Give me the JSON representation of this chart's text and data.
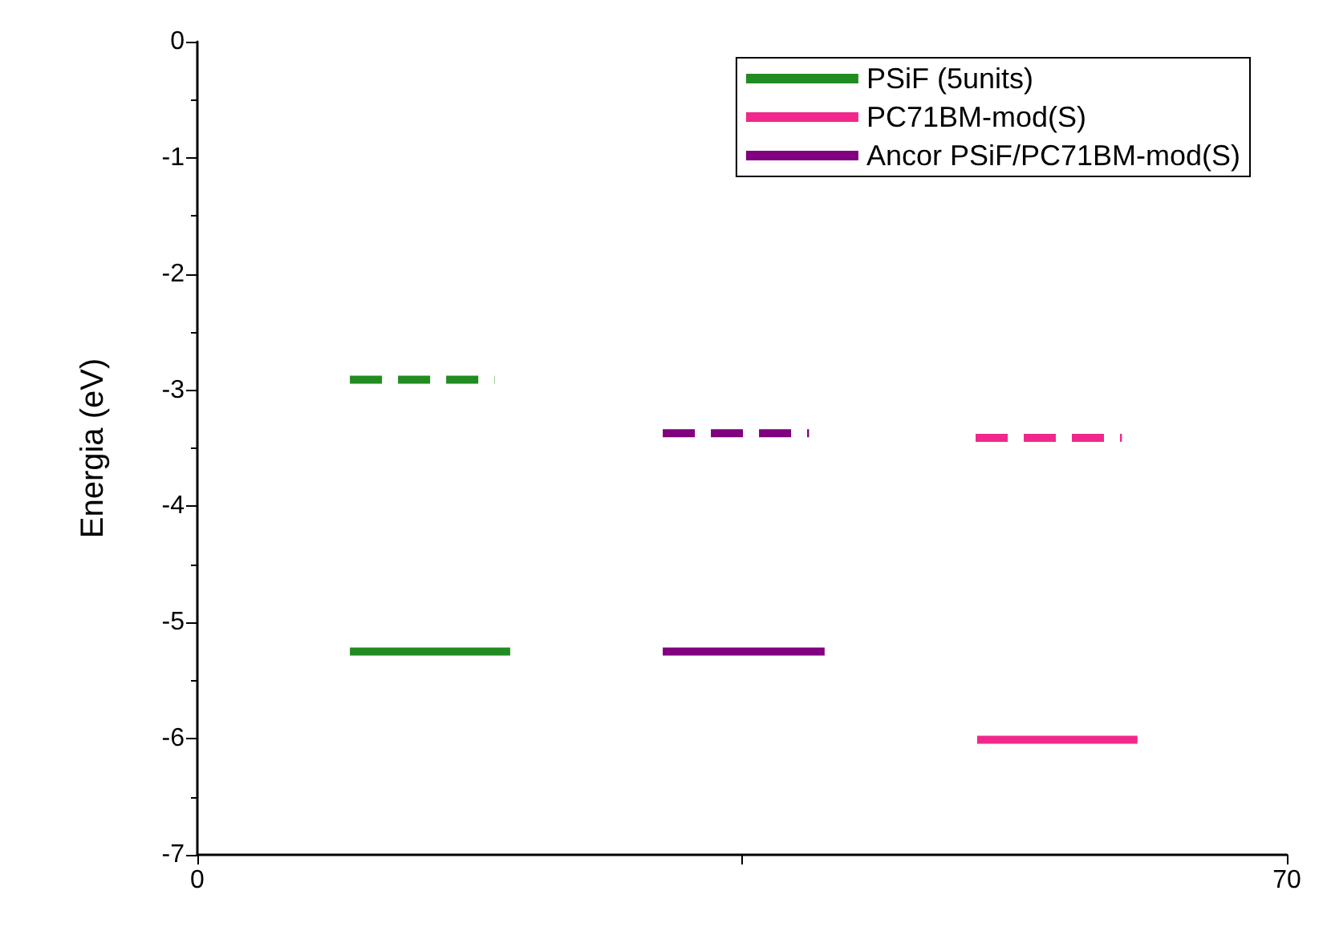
{
  "chart_data": {
    "type": "line",
    "ylabel": "Energia (eV)",
    "xlim": [
      0,
      70
    ],
    "xticks": [
      0,
      {
        "value": 35,
        "label": null
      },
      70
    ],
    "ylim": [
      -7,
      0
    ],
    "yticks": [
      -7,
      -6,
      -5,
      -4,
      -3,
      -2,
      -1,
      0
    ],
    "grid": false,
    "legend": "top right",
    "marker": "none",
    "series": [
      {
        "name": "PSiF (5units)",
        "color": "#218c21",
        "line_style": "solid",
        "x": [
          9.8,
          20.1
        ],
        "values": [
          -5.25,
          -5.25
        ]
      },
      {
        "name": "PC71BM-mod(S)",
        "color": "#f0288c",
        "line_style": "solid",
        "x": [
          50.1,
          60.4
        ],
        "values": [
          -6.01,
          -6.01
        ]
      },
      {
        "name": "Ancor PSiF/PC71BM-mod(S)",
        "color": "#800080",
        "line_style": "solid",
        "x": [
          29.9,
          40.3
        ],
        "values": [
          -5.25,
          -5.25
        ]
      },
      {
        "color": "#218c21",
        "line_style": "dashed",
        "x": [
          9.8,
          19.1
        ],
        "values": [
          -2.91,
          -2.91
        ]
      },
      {
        "color": "#800080",
        "line_style": "dashed",
        "x": [
          29.9,
          39.3
        ],
        "values": [
          -3.37,
          -3.37
        ]
      },
      {
        "color": "#f0288c",
        "line_style": "dashed",
        "x": [
          50,
          59.4
        ],
        "values": [
          -3.41,
          -3.41
        ]
      }
    ]
  }
}
